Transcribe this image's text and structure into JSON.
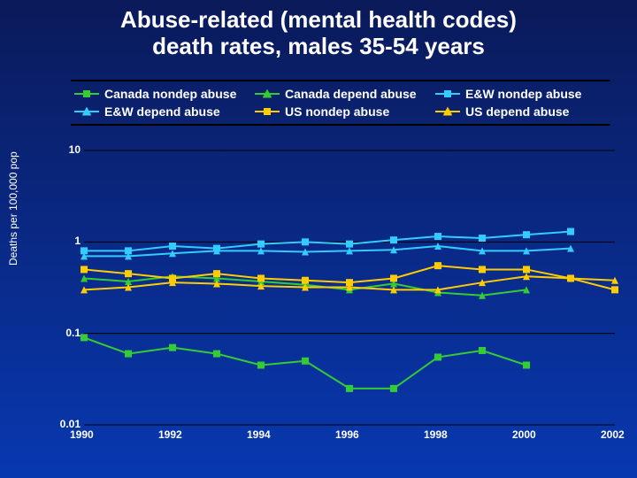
{
  "chart": {
    "type": "line",
    "title_line1": "Abuse-related (mental health codes)",
    "title_line2": "death rates, males 35-54 years",
    "title_fontsize": 26,
    "ylabel": "Deaths per 100,000 pop",
    "label_fontsize": 12,
    "background_gradient": [
      "#0a1a5a",
      "#0838b0"
    ],
    "text_color": "#ffffff",
    "gridline_color": "#000000",
    "line_width": 2,
    "marker_size": 8,
    "x": {
      "min": 1990,
      "max": 2002,
      "ticks": [
        1990,
        1992,
        1994,
        1996,
        1998,
        2000,
        2002
      ]
    },
    "y": {
      "scale": "log",
      "min": 0.01,
      "max": 10,
      "ticks": [
        0.01,
        0.1,
        1,
        10
      ],
      "tick_labels": [
        "0.01",
        "0.1",
        "1",
        "10"
      ]
    },
    "series": [
      {
        "name": "Canada nondep abuse",
        "marker": "square",
        "color": "#33cc33",
        "x": [
          1990,
          1991,
          1992,
          1993,
          1994,
          1995,
          1996,
          1997,
          1998,
          1999,
          2000
        ],
        "y": [
          0.09,
          0.06,
          0.07,
          0.06,
          0.045,
          0.05,
          0.025,
          0.025,
          0.055,
          0.065,
          0.045
        ]
      },
      {
        "name": "Canada depend abuse",
        "marker": "triangle",
        "color": "#33cc33",
        "x": [
          1990,
          1991,
          1992,
          1993,
          1994,
          1995,
          1996,
          1997,
          1998,
          1999,
          2000
        ],
        "y": [
          0.4,
          0.37,
          0.42,
          0.4,
          0.37,
          0.34,
          0.3,
          0.35,
          0.28,
          0.26,
          0.3
        ]
      },
      {
        "name": "E&W nondep abuse",
        "marker": "square",
        "color": "#33ccff",
        "x": [
          1990,
          1991,
          1992,
          1993,
          1994,
          1995,
          1996,
          1997,
          1998,
          1999,
          2000,
          2001
        ],
        "y": [
          0.8,
          0.8,
          0.9,
          0.85,
          0.95,
          1.0,
          0.95,
          1.05,
          1.15,
          1.1,
          1.2,
          1.3
        ]
      },
      {
        "name": "E&W depend abuse",
        "marker": "triangle",
        "color": "#33ccff",
        "x": [
          1990,
          1991,
          1992,
          1993,
          1994,
          1995,
          1996,
          1997,
          1998,
          1999,
          2000,
          2001
        ],
        "y": [
          0.7,
          0.7,
          0.75,
          0.8,
          0.8,
          0.78,
          0.8,
          0.82,
          0.9,
          0.8,
          0.8,
          0.85
        ]
      },
      {
        "name": "US nondep abuse",
        "marker": "square",
        "color": "#ffcc00",
        "x": [
          1990,
          1991,
          1992,
          1993,
          1994,
          1995,
          1996,
          1997,
          1998,
          1999,
          2000,
          2001,
          2002
        ],
        "y": [
          0.5,
          0.45,
          0.4,
          0.45,
          0.4,
          0.38,
          0.36,
          0.4,
          0.55,
          0.5,
          0.5,
          0.4,
          0.3
        ]
      },
      {
        "name": "US depend abuse",
        "marker": "triangle",
        "color": "#ffcc00",
        "x": [
          1990,
          1991,
          1992,
          1993,
          1994,
          1995,
          1996,
          1997,
          1998,
          1999,
          2000,
          2001,
          2002
        ],
        "y": [
          0.3,
          0.32,
          0.36,
          0.35,
          0.33,
          0.32,
          0.32,
          0.3,
          0.3,
          0.36,
          0.42,
          0.4,
          0.38
        ]
      }
    ]
  }
}
